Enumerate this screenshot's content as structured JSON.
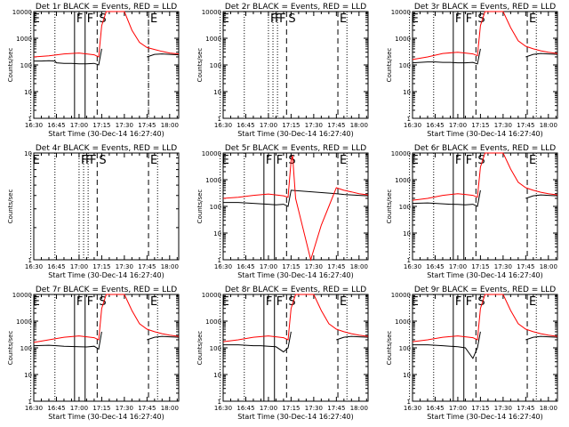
{
  "common": {
    "ylabel": "Counts/sec",
    "xlabel": "Start Time (30-Dec-14 16:27:40)",
    "x_ticks": [
      "16:30",
      "16:45",
      "17:00",
      "17:15",
      "17:30",
      "17:45",
      "18:00"
    ],
    "y_ticks": [
      "1",
      "10",
      "100",
      "1000",
      "10000"
    ],
    "series_colors": {
      "events": "#000000",
      "lld": "#ff0000"
    }
  },
  "chart_data": [
    {
      "type": "line",
      "title": "Det 1r BLACK = Events, RED = LLD",
      "xlabel": "Start Time (30-Dec-14 16:27:40)",
      "ylabel": "Counts/sec",
      "xlim": [
        "16:30",
        "18:06"
      ],
      "ylim": [
        1,
        10000
      ],
      "yscale": "log",
      "markers": [
        {
          "label": "E",
          "time": "16:28",
          "style": "dotted"
        },
        {
          "label": "F",
          "time": "16:57",
          "style": "solid"
        },
        {
          "label": "F",
          "time": "17:04",
          "style": "solid"
        },
        {
          "label": "S",
          "time": "17:12",
          "style": "dashed"
        },
        {
          "label": "E",
          "time": "17:46",
          "style": "dashed"
        }
      ],
      "dotted_lines": [
        "16:44",
        "17:46"
      ],
      "series": [
        {
          "name": "Events",
          "color": "#000000",
          "x": [
            "16:30",
            "16:35",
            "16:40",
            "16:44",
            "16:45",
            "16:50",
            "16:55",
            "17:00",
            "17:05",
            "17:10",
            "17:13",
            "17:15",
            "17:43",
            "17:45",
            "17:50",
            "17:55",
            "18:00",
            "18:06"
          ],
          "y": [
            140,
            140,
            145,
            140,
            120,
            115,
            115,
            110,
            110,
            115,
            100,
            400,
            null,
            200,
            250,
            260,
            250,
            240
          ]
        },
        {
          "name": "LLD",
          "color": "#ff0000",
          "x": [
            "16:30",
            "16:40",
            "16:50",
            "17:00",
            "17:05",
            "17:10",
            "17:13",
            "17:15",
            "17:18",
            "17:30",
            "17:35",
            "17:40",
            "17:45",
            "17:50",
            "17:55",
            "18:00",
            "18:06"
          ],
          "y": [
            200,
            220,
            260,
            280,
            260,
            240,
            200,
            3000,
            10000,
            10000,
            2000,
            700,
            450,
            380,
            320,
            280,
            260
          ]
        }
      ]
    },
    {
      "type": "line",
      "title": "Det 2r BLACK = Events, RED = LLD",
      "xlabel": "Start Time (30-Dec-14 16:27:40)",
      "ylabel": "Counts/sec",
      "xlim": [
        "16:30",
        "18:06"
      ],
      "ylim": [
        1,
        10000
      ],
      "yscale": "log",
      "markers": [
        {
          "label": "E",
          "time": "16:28",
          "style": "dotted"
        },
        {
          "label": "F",
          "time": "17:00",
          "style": "dotted"
        },
        {
          "label": "F",
          "time": "17:03",
          "style": "dotted"
        },
        {
          "label": "F",
          "time": "17:06",
          "style": "dotted"
        },
        {
          "label": "S",
          "time": "17:12",
          "style": "dashed"
        },
        {
          "label": "E",
          "time": "17:46",
          "style": "dashed"
        }
      ],
      "dotted_lines": [
        "16:44",
        "17:52"
      ],
      "series": []
    },
    {
      "type": "line",
      "title": "Det 3r BLACK = Events, RED = LLD",
      "xlabel": "Start Time (30-Dec-14 16:27:40)",
      "ylabel": "Counts/sec",
      "xlim": [
        "16:30",
        "18:06"
      ],
      "ylim": [
        1,
        10000
      ],
      "yscale": "log",
      "markers": [
        {
          "label": "E",
          "time": "16:28",
          "style": "dotted"
        },
        {
          "label": "F",
          "time": "16:57",
          "style": "solid"
        },
        {
          "label": "F",
          "time": "17:04",
          "style": "solid"
        },
        {
          "label": "S",
          "time": "17:12",
          "style": "dashed"
        },
        {
          "label": "E",
          "time": "17:46",
          "style": "dashed"
        }
      ],
      "dotted_lines": [
        "16:44",
        "17:52"
      ],
      "series": [
        {
          "name": "Events",
          "color": "#000000",
          "x": [
            "16:30",
            "16:40",
            "16:45",
            "16:50",
            "16:55",
            "17:00",
            "17:05",
            "17:10",
            "17:13",
            "17:15",
            "17:43",
            "17:45",
            "17:50",
            "17:55",
            "18:00",
            "18:06"
          ],
          "y": [
            120,
            130,
            130,
            125,
            125,
            120,
            120,
            125,
            110,
            400,
            null,
            200,
            250,
            270,
            260,
            250
          ]
        },
        {
          "name": "LLD",
          "color": "#ff0000",
          "x": [
            "16:30",
            "16:40",
            "16:50",
            "17:00",
            "17:05",
            "17:10",
            "17:13",
            "17:15",
            "17:18",
            "17:30",
            "17:35",
            "17:40",
            "17:45",
            "17:50",
            "17:55",
            "18:00",
            "18:06"
          ],
          "y": [
            160,
            200,
            270,
            300,
            280,
            260,
            220,
            3000,
            10000,
            10000,
            2500,
            800,
            500,
            400,
            340,
            300,
            270
          ]
        }
      ]
    },
    {
      "type": "line",
      "title": "Det 4r BLACK = Events, RED = LLD",
      "xlabel": "Start Time (30-Dec-14 16:27:40)",
      "ylabel": "Counts/sec",
      "xlim": [
        "16:30",
        "18:06"
      ],
      "ylim": [
        1,
        10
      ],
      "yscale": "log",
      "markers": [
        {
          "label": "E",
          "time": "16:28",
          "style": "dotted"
        },
        {
          "label": "F",
          "time": "17:00",
          "style": "dotted"
        },
        {
          "label": "F",
          "time": "17:03",
          "style": "dotted"
        },
        {
          "label": "F",
          "time": "17:06",
          "style": "dotted"
        },
        {
          "label": "S",
          "time": "17:12",
          "style": "dashed"
        },
        {
          "label": "E",
          "time": "17:46",
          "style": "dashed"
        }
      ],
      "dotted_lines": [
        "16:44",
        "17:52"
      ],
      "series": []
    },
    {
      "type": "line",
      "title": "Det 5r BLACK = Events, RED = LLD",
      "xlabel": "Start Time (30-Dec-14 16:27:40)",
      "ylabel": "Counts/sec",
      "xlim": [
        "16:30",
        "18:06"
      ],
      "ylim": [
        1,
        10000
      ],
      "yscale": "log",
      "markers": [
        {
          "label": "E",
          "time": "16:28",
          "style": "dotted"
        },
        {
          "label": "F",
          "time": "16:57",
          "style": "solid"
        },
        {
          "label": "F",
          "time": "17:04",
          "style": "solid"
        },
        {
          "label": "S",
          "time": "17:12",
          "style": "dashed"
        },
        {
          "label": "E",
          "time": "17:46",
          "style": "dashed"
        }
      ],
      "dotted_lines": [
        "16:44",
        "17:52"
      ],
      "series": [
        {
          "name": "Events",
          "color": "#000000",
          "x": [
            "16:30",
            "16:40",
            "16:45",
            "16:50",
            "16:55",
            "17:00",
            "17:05",
            "17:10",
            "17:13",
            "17:15",
            "17:45",
            "17:50",
            "17:55",
            "18:00",
            "18:06"
          ],
          "y": [
            140,
            140,
            135,
            130,
            125,
            120,
            115,
            120,
            100,
            400,
            300,
            280,
            270,
            260,
            250
          ]
        },
        {
          "name": "LLD",
          "color": "#ff0000",
          "x": [
            "16:30",
            "16:40",
            "16:50",
            "17:00",
            "17:05",
            "17:10",
            "17:13",
            "17:15",
            "17:16",
            "17:18",
            "17:28",
            "17:35",
            "17:40",
            "17:45",
            "17:50",
            "17:55",
            "18:00",
            "18:06"
          ],
          "y": [
            200,
            220,
            260,
            290,
            270,
            250,
            220,
            5000,
            8000,
            200,
            1,
            20,
            100,
            500,
            400,
            350,
            300,
            270
          ]
        }
      ]
    },
    {
      "type": "line",
      "title": "Det 6r BLACK = Events, RED = LLD",
      "xlabel": "Start Time (30-Dec-14 16:27:40)",
      "ylabel": "Counts/sec",
      "xlim": [
        "16:30",
        "18:06"
      ],
      "ylim": [
        1,
        10000
      ],
      "yscale": "log",
      "markers": [
        {
          "label": "E",
          "time": "16:28",
          "style": "dotted"
        },
        {
          "label": "F",
          "time": "16:57",
          "style": "solid"
        },
        {
          "label": "F",
          "time": "17:04",
          "style": "solid"
        },
        {
          "label": "S",
          "time": "17:12",
          "style": "dashed"
        },
        {
          "label": "E",
          "time": "17:46",
          "style": "dashed"
        }
      ],
      "dotted_lines": [
        "16:44",
        "17:52"
      ],
      "series": [
        {
          "name": "Events",
          "color": "#000000",
          "x": [
            "16:30",
            "16:40",
            "16:45",
            "16:50",
            "16:55",
            "17:00",
            "17:05",
            "17:10",
            "17:13",
            "17:15",
            "17:43",
            "17:45",
            "17:50",
            "17:55",
            "18:00",
            "18:06"
          ],
          "y": [
            130,
            135,
            130,
            125,
            120,
            118,
            115,
            120,
            100,
            400,
            null,
            200,
            250,
            270,
            260,
            250
          ]
        },
        {
          "name": "LLD",
          "color": "#ff0000",
          "x": [
            "16:30",
            "16:40",
            "16:50",
            "17:00",
            "17:05",
            "17:10",
            "17:13",
            "17:15",
            "17:18",
            "17:30",
            "17:35",
            "17:40",
            "17:45",
            "17:50",
            "17:55",
            "18:00",
            "18:06"
          ],
          "y": [
            170,
            200,
            260,
            300,
            280,
            260,
            220,
            3000,
            10000,
            10000,
            2500,
            800,
            500,
            400,
            340,
            300,
            270
          ]
        }
      ]
    },
    {
      "type": "line",
      "title": "Det 7r BLACK = Events, RED = LLD",
      "xlabel": "Start Time (30-Dec-14 16:27:40)",
      "ylabel": "Counts/sec",
      "xlim": [
        "16:30",
        "18:06"
      ],
      "ylim": [
        1,
        10000
      ],
      "yscale": "log",
      "markers": [
        {
          "label": "E",
          "time": "16:28",
          "style": "dotted"
        },
        {
          "label": "F",
          "time": "16:57",
          "style": "solid"
        },
        {
          "label": "F",
          "time": "17:04",
          "style": "solid"
        },
        {
          "label": "S",
          "time": "17:12",
          "style": "dashed"
        },
        {
          "label": "E",
          "time": "17:46",
          "style": "dashed"
        }
      ],
      "dotted_lines": [
        "16:44",
        "17:52"
      ],
      "series": [
        {
          "name": "Events",
          "color": "#000000",
          "x": [
            "16:30",
            "16:40",
            "16:45",
            "16:50",
            "16:55",
            "17:00",
            "17:05",
            "17:10",
            "17:13",
            "17:15",
            "17:43",
            "17:45",
            "17:50",
            "17:55",
            "18:00",
            "18:06"
          ],
          "y": [
            120,
            125,
            120,
            115,
            112,
            110,
            108,
            115,
            90,
            400,
            null,
            200,
            250,
            270,
            260,
            250
          ]
        },
        {
          "name": "LLD",
          "color": "#ff0000",
          "x": [
            "16:30",
            "16:40",
            "16:50",
            "17:00",
            "17:05",
            "17:10",
            "17:13",
            "17:15",
            "17:18",
            "17:30",
            "17:35",
            "17:40",
            "17:45",
            "17:50",
            "17:55",
            "18:00",
            "18:06"
          ],
          "y": [
            160,
            200,
            250,
            280,
            260,
            240,
            200,
            3000,
            10000,
            10000,
            2500,
            800,
            500,
            400,
            340,
            300,
            270
          ]
        }
      ]
    },
    {
      "type": "line",
      "title": "Det 8r BLACK = Events, RED = LLD",
      "xlabel": "Start Time (30-Dec-14 16:27:40)",
      "ylabel": "Counts/sec",
      "xlim": [
        "16:30",
        "18:06"
      ],
      "ylim": [
        1,
        10000
      ],
      "yscale": "log",
      "markers": [
        {
          "label": "E",
          "time": "16:28",
          "style": "dotted"
        },
        {
          "label": "F",
          "time": "16:57",
          "style": "solid"
        },
        {
          "label": "F",
          "time": "17:04",
          "style": "solid"
        },
        {
          "label": "S",
          "time": "17:12",
          "style": "dashed"
        },
        {
          "label": "E",
          "time": "17:46",
          "style": "dashed"
        }
      ],
      "dotted_lines": [
        "16:44",
        "17:52"
      ],
      "series": [
        {
          "name": "Events",
          "color": "#000000",
          "x": [
            "16:30",
            "16:40",
            "16:45",
            "16:50",
            "16:55",
            "17:00",
            "17:05",
            "17:10",
            "17:13",
            "17:15",
            "17:43",
            "17:45",
            "17:50",
            "17:55",
            "18:00",
            "18:06"
          ],
          "y": [
            130,
            130,
            125,
            120,
            120,
            115,
            110,
            70,
            100,
            400,
            null,
            200,
            250,
            270,
            260,
            250
          ]
        },
        {
          "name": "LLD",
          "color": "#ff0000",
          "x": [
            "16:30",
            "16:40",
            "16:50",
            "17:00",
            "17:05",
            "17:10",
            "17:13",
            "17:15",
            "17:18",
            "17:30",
            "17:35",
            "17:40",
            "17:45",
            "17:50",
            "17:55",
            "18:00",
            "18:06"
          ],
          "y": [
            170,
            200,
            250,
            280,
            260,
            240,
            200,
            3000,
            10000,
            10000,
            2500,
            800,
            500,
            400,
            340,
            300,
            270
          ]
        }
      ]
    },
    {
      "type": "line",
      "title": "Det 9r BLACK = Events, RED = LLD",
      "xlabel": "Start Time (30-Dec-14 16:27:40)",
      "ylabel": "Counts/sec",
      "xlim": [
        "16:30",
        "18:06"
      ],
      "ylim": [
        1,
        10000
      ],
      "yscale": "log",
      "markers": [
        {
          "label": "E",
          "time": "16:28",
          "style": "dotted"
        },
        {
          "label": "F",
          "time": "16:57",
          "style": "solid"
        },
        {
          "label": "F",
          "time": "17:04",
          "style": "solid"
        },
        {
          "label": "S",
          "time": "17:12",
          "style": "dashed"
        },
        {
          "label": "E",
          "time": "17:46",
          "style": "dashed"
        }
      ],
      "dotted_lines": [
        "16:44",
        "17:52"
      ],
      "series": [
        {
          "name": "Events",
          "color": "#000000",
          "x": [
            "16:30",
            "16:40",
            "16:45",
            "16:50",
            "16:55",
            "17:00",
            "17:05",
            "17:10",
            "17:13",
            "17:15",
            "17:43",
            "17:45",
            "17:50",
            "17:55",
            "18:00",
            "18:06"
          ],
          "y": [
            130,
            130,
            125,
            120,
            115,
            110,
            100,
            40,
            100,
            400,
            null,
            200,
            250,
            270,
            260,
            250
          ]
        },
        {
          "name": "LLD",
          "color": "#ff0000",
          "x": [
            "16:30",
            "16:40",
            "16:50",
            "17:00",
            "17:05",
            "17:10",
            "17:13",
            "17:15",
            "17:18",
            "17:30",
            "17:35",
            "17:40",
            "17:45",
            "17:50",
            "17:55",
            "18:00",
            "18:06"
          ],
          "y": [
            170,
            200,
            250,
            280,
            260,
            240,
            200,
            3000,
            10000,
            10000,
            2500,
            800,
            500,
            400,
            340,
            300,
            270
          ]
        }
      ]
    }
  ]
}
